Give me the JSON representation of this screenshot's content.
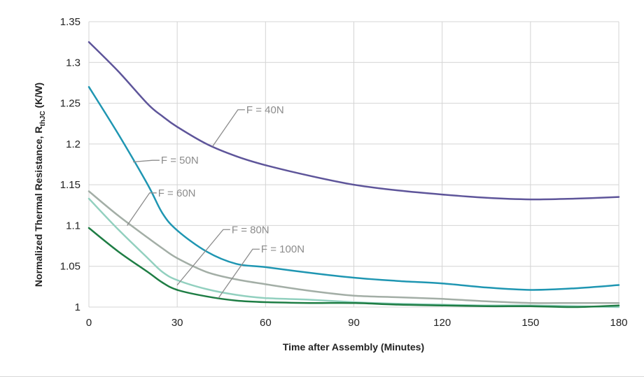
{
  "chart_data": {
    "type": "line",
    "title": "",
    "xlabel": "Time after Assembly (Minutes)",
    "ylabel_main": "Normalized Thermal Resistance, R",
    "ylabel_sub": "thJC",
    "ylabel_unit": " (K/W)",
    "xlim": [
      0,
      180
    ],
    "ylim": [
      1,
      1.35
    ],
    "x_ticks": [
      0,
      30,
      60,
      90,
      120,
      150,
      180
    ],
    "y_ticks": [
      1,
      1.05,
      1.1,
      1.15,
      1.2,
      1.25,
      1.3,
      1.35
    ],
    "y_tick_labels": [
      "1",
      "1.05",
      "1.1",
      "1.15",
      "1.2",
      "1.25",
      "1.3",
      "1.35"
    ],
    "grid": true,
    "legend": "none",
    "x": [
      0,
      10,
      20,
      25,
      30,
      40,
      50,
      60,
      75,
      90,
      105,
      120,
      135,
      150,
      165,
      180
    ],
    "series": [
      {
        "name": "F = 40N",
        "color": "#5e559a",
        "values": [
          1.325,
          1.289,
          1.249,
          1.234,
          1.221,
          1.2,
          1.185,
          1.174,
          1.161,
          1.15,
          1.143,
          1.138,
          1.134,
          1.132,
          1.133,
          1.135
        ]
      },
      {
        "name": "F = 50N",
        "color": "#1f96b2",
        "values": [
          1.27,
          1.212,
          1.15,
          1.115,
          1.094,
          1.068,
          1.053,
          1.049,
          1.042,
          1.036,
          1.032,
          1.029,
          1.024,
          1.021,
          1.023,
          1.027
        ]
      },
      {
        "name": "F = 60N",
        "color": "#a3aea6",
        "values": [
          1.142,
          1.112,
          1.085,
          1.072,
          1.06,
          1.043,
          1.034,
          1.028,
          1.02,
          1.014,
          1.012,
          1.01,
          1.007,
          1.005,
          1.005,
          1.005
        ]
      },
      {
        "name": "F = 80N",
        "color": "#92d0bf",
        "values": [
          1.133,
          1.095,
          1.06,
          1.043,
          1.033,
          1.022,
          1.015,
          1.011,
          1.009,
          1.006,
          1.004,
          1.003,
          1.002,
          1.002,
          1.001,
          1.0
        ]
      },
      {
        "name": "F = 100N",
        "color": "#1e7d44",
        "values": [
          1.097,
          1.068,
          1.043,
          1.03,
          1.021,
          1.013,
          1.008,
          1.006,
          1.005,
          1.005,
          1.003,
          1.002,
          1.001,
          1.001,
          1.0,
          1.002
        ]
      }
    ],
    "annotations": [
      {
        "text": "F = 40N",
        "target_x": 42,
        "target_y": 1.197,
        "text_x": 53,
        "text_y": 1.242
      },
      {
        "text": "F = 50N",
        "target_x": 15,
        "target_y": 1.178,
        "text_x": 24,
        "text_y": 1.18
      },
      {
        "text": "F = 60N",
        "target_x": 13,
        "target_y": 1.1,
        "text_x": 23,
        "text_y": 1.14
      },
      {
        "text": "F = 80N",
        "target_x": 30,
        "target_y": 1.027,
        "text_x": 48,
        "text_y": 1.095
      },
      {
        "text": "F = 100N",
        "target_x": 44,
        "target_y": 1.011,
        "text_x": 58,
        "text_y": 1.071
      }
    ]
  }
}
